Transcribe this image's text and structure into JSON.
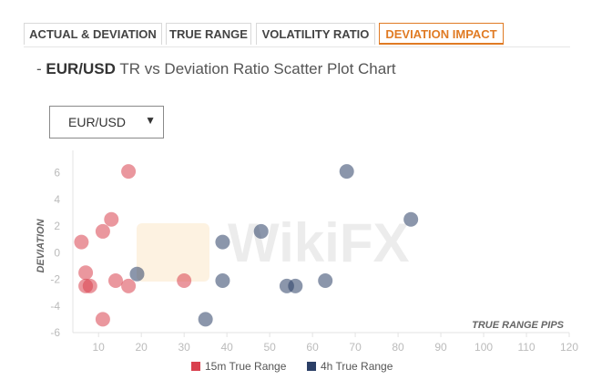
{
  "tabs": [
    {
      "label": "ACTUAL & DEVIATION",
      "active": false
    },
    {
      "label": "TRUE RANGE",
      "active": false
    },
    {
      "label": "VOLATILITY RATIO",
      "active": false
    },
    {
      "label": "DEVIATION IMPACT",
      "active": true
    }
  ],
  "header": {
    "prefix": "- ",
    "pair": "EUR/USD",
    "rest": " TR vs Deviation Ratio Scatter Plot Chart"
  },
  "selector": {
    "value": "EUR/USD"
  },
  "watermark": {
    "text": "WikiFX"
  },
  "colors": {
    "series_15m": "#d9414f",
    "series_4h": "#2b3f66",
    "accent": "#e07b24"
  },
  "chart_data": {
    "type": "scatter",
    "xlabel": "TRUE RANGE PIPS",
    "ylabel": "DEVIATION",
    "xlim": [
      4,
      120
    ],
    "ylim": [
      -6,
      7
    ],
    "xticks": [
      10,
      20,
      30,
      40,
      50,
      60,
      70,
      80,
      90,
      100,
      110,
      120
    ],
    "yticks": [
      -6,
      -4,
      -2,
      0,
      2,
      4,
      6
    ],
    "legend_position": "bottom",
    "series": [
      {
        "name": "15m True Range",
        "color": "#d9414f",
        "points": [
          [
            17,
            6.1
          ],
          [
            13,
            2.5
          ],
          [
            11,
            1.6
          ],
          [
            6,
            0.8
          ],
          [
            7,
            -1.5
          ],
          [
            7,
            -2.5
          ],
          [
            8,
            -2.5
          ],
          [
            14,
            -2.1
          ],
          [
            17,
            -2.5
          ],
          [
            30,
            -2.1
          ],
          [
            11,
            -5.0
          ]
        ]
      },
      {
        "name": "4h True Range",
        "color": "#2b3f66",
        "points": [
          [
            68,
            6.1
          ],
          [
            83,
            2.5
          ],
          [
            48,
            1.6
          ],
          [
            39,
            0.8
          ],
          [
            19,
            -1.6
          ],
          [
            39,
            -2.1
          ],
          [
            63,
            -2.1
          ],
          [
            54,
            -2.5
          ],
          [
            56,
            -2.5
          ],
          [
            35,
            -5.0
          ]
        ]
      }
    ]
  }
}
